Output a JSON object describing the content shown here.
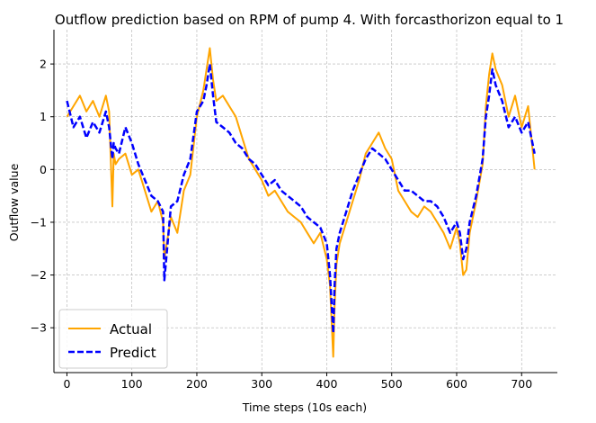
{
  "chart_data": {
    "type": "line",
    "title": "Outflow prediction based on RPM of pump 4. With forcasthorizon equal to 1",
    "xlabel": "Time steps (10s each)",
    "ylabel": "Outflow value",
    "xlim": [
      -20,
      755
    ],
    "ylim": [
      -3.85,
      2.65
    ],
    "xticks": [
      0,
      100,
      200,
      300,
      400,
      500,
      600,
      700
    ],
    "yticks": [
      2,
      1,
      0,
      -1,
      -2,
      -3
    ],
    "xtick_labels": [
      "0",
      "100",
      "200",
      "300",
      "400",
      "500",
      "600",
      "700"
    ],
    "ytick_labels": [
      "2",
      "1",
      "0",
      "−1",
      "−2",
      "−3"
    ],
    "grid": true,
    "legend_position": "lower-left",
    "series": [
      {
        "name": "Actual",
        "color": "#FFA500",
        "style": "solid",
        "x": [
          0,
          10,
          20,
          30,
          40,
          50,
          60,
          65,
          70,
          72,
          75,
          80,
          90,
          100,
          110,
          120,
          130,
          140,
          148,
          150,
          160,
          170,
          180,
          190,
          200,
          210,
          215,
          220,
          225,
          230,
          240,
          250,
          260,
          270,
          280,
          290,
          300,
          310,
          320,
          330,
          340,
          350,
          360,
          370,
          380,
          390,
          400,
          405,
          410,
          412,
          415,
          420,
          430,
          440,
          450,
          460,
          470,
          480,
          490,
          500,
          510,
          520,
          530,
          540,
          550,
          560,
          570,
          580,
          590,
          600,
          605,
          610,
          615,
          620,
          630,
          640,
          645,
          650,
          655,
          660,
          670,
          680,
          690,
          700,
          710,
          720
        ],
        "values": [
          1.0,
          1.2,
          1.4,
          1.1,
          1.3,
          1.0,
          1.4,
          1.1,
          -0.7,
          0.3,
          0.1,
          0.2,
          0.3,
          -0.1,
          0.0,
          -0.4,
          -0.8,
          -0.6,
          -1.0,
          -1.7,
          -0.9,
          -1.2,
          -0.4,
          -0.1,
          1.0,
          1.5,
          1.9,
          2.3,
          1.7,
          1.3,
          1.4,
          1.2,
          1.0,
          0.6,
          0.2,
          0.0,
          -0.2,
          -0.5,
          -0.4,
          -0.6,
          -0.8,
          -0.9,
          -1.0,
          -1.2,
          -1.4,
          -1.2,
          -1.7,
          -2.2,
          -3.55,
          -2.6,
          -1.8,
          -1.4,
          -1.0,
          -0.6,
          -0.2,
          0.3,
          0.5,
          0.7,
          0.4,
          0.2,
          -0.4,
          -0.6,
          -0.8,
          -0.9,
          -0.7,
          -0.8,
          -1.0,
          -1.2,
          -1.5,
          -1.1,
          -1.4,
          -2.0,
          -1.9,
          -1.2,
          -0.6,
          0.1,
          1.2,
          1.8,
          2.2,
          1.9,
          1.6,
          1.0,
          1.4,
          0.8,
          1.2,
          0.0
        ]
      },
      {
        "name": "Predict",
        "color": "#0000FF",
        "style": "dashed",
        "x": [
          0,
          10,
          20,
          30,
          40,
          50,
          60,
          65,
          70,
          72,
          75,
          80,
          90,
          100,
          110,
          120,
          130,
          140,
          148,
          150,
          160,
          170,
          180,
          190,
          200,
          210,
          215,
          220,
          225,
          230,
          240,
          250,
          260,
          270,
          280,
          290,
          300,
          310,
          320,
          330,
          340,
          350,
          360,
          370,
          380,
          390,
          400,
          405,
          410,
          412,
          415,
          420,
          430,
          440,
          450,
          460,
          470,
          480,
          490,
          500,
          510,
          520,
          530,
          540,
          550,
          560,
          570,
          580,
          590,
          600,
          605,
          610,
          615,
          620,
          630,
          640,
          645,
          650,
          655,
          660,
          670,
          680,
          690,
          700,
          710,
          720
        ],
        "values": [
          1.3,
          0.8,
          1.0,
          0.6,
          0.9,
          0.7,
          1.1,
          0.8,
          0.2,
          0.5,
          0.4,
          0.3,
          0.8,
          0.5,
          0.1,
          -0.2,
          -0.5,
          -0.6,
          -0.8,
          -2.1,
          -0.7,
          -0.6,
          -0.1,
          0.2,
          1.1,
          1.3,
          1.6,
          2.0,
          1.4,
          0.9,
          0.8,
          0.7,
          0.5,
          0.4,
          0.2,
          0.1,
          -0.1,
          -0.3,
          -0.2,
          -0.4,
          -0.5,
          -0.6,
          -0.7,
          -0.9,
          -1.0,
          -1.1,
          -1.4,
          -2.0,
          -3.1,
          -2.2,
          -1.5,
          -1.2,
          -0.8,
          -0.4,
          -0.1,
          0.2,
          0.4,
          0.3,
          0.2,
          0.0,
          -0.2,
          -0.4,
          -0.4,
          -0.5,
          -0.6,
          -0.6,
          -0.7,
          -0.9,
          -1.2,
          -1.0,
          -1.2,
          -1.7,
          -1.5,
          -1.0,
          -0.5,
          0.2,
          1.0,
          1.4,
          1.9,
          1.6,
          1.3,
          0.8,
          1.0,
          0.7,
          0.9,
          0.3
        ]
      }
    ]
  }
}
